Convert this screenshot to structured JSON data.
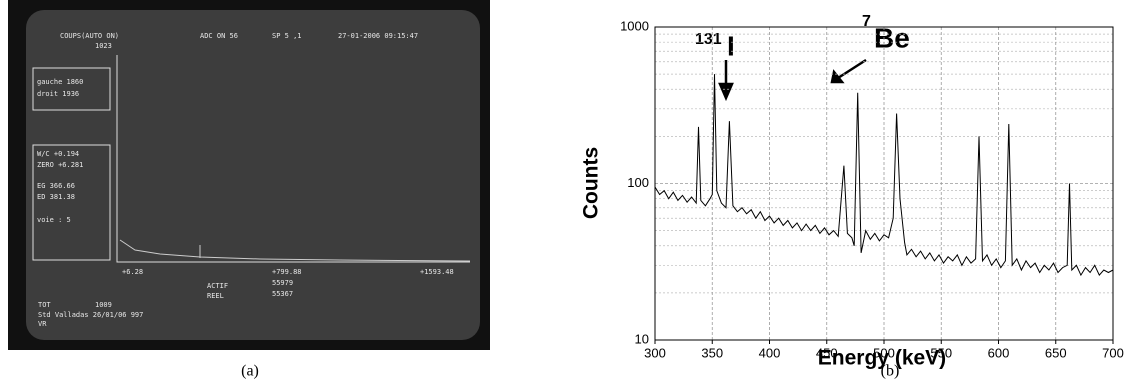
{
  "screen": {
    "lines": [
      "COUPS(AUTO ON)",
      "1023",
      "ADC ON 56",
      "SP 5 ,1",
      "27-01-2006  09:15:47",
      "gauche  1860",
      "droit  1936",
      "W/C  +0.194",
      "ZERO  +6.281",
      "EG  366.66",
      "ED  381.38",
      "voie :  5",
      "+6.28",
      "+799.88",
      "+1593.48",
      "ACTIF",
      "55979",
      "REEL",
      "55367",
      "TOT",
      "1009",
      "Std Valladas 26/01/06 997",
      "VR"
    ]
  },
  "captions": [
    "(a)",
    "(b)"
  ],
  "chart_data": {
    "type": "line",
    "xlabel": "Energy (keV)",
    "ylabel": "Counts",
    "log_y": true,
    "grid": true,
    "annotations": [
      {
        "mass": "131",
        "element": "I"
      },
      {
        "mass": "7",
        "element": "Be"
      }
    ],
    "xlim": [
      300,
      700
    ],
    "xticks": [
      300,
      350,
      400,
      450,
      500,
      550,
      600,
      650,
      700
    ],
    "ylim": [
      10,
      1000
    ],
    "yticks": [
      10,
      100,
      1000
    ],
    "x": [
      300,
      304,
      308,
      312,
      316,
      320,
      324,
      328,
      332,
      336,
      338,
      340,
      344,
      348,
      350,
      352,
      354,
      358,
      362,
      365,
      368,
      372,
      376,
      380,
      384,
      388,
      392,
      396,
      400,
      404,
      408,
      412,
      416,
      420,
      424,
      428,
      432,
      436,
      440,
      444,
      448,
      452,
      456,
      460,
      465,
      468,
      472,
      474,
      477,
      480,
      484,
      488,
      492,
      496,
      500,
      504,
      508,
      511,
      514,
      518,
      520,
      524,
      528,
      532,
      536,
      540,
      544,
      548,
      552,
      556,
      560,
      564,
      568,
      572,
      576,
      580,
      583,
      586,
      590,
      594,
      598,
      602,
      606,
      609,
      612,
      616,
      620,
      624,
      628,
      632,
      636,
      640,
      644,
      648,
      652,
      656,
      660,
      662,
      664,
      668,
      672,
      676,
      680,
      684,
      688,
      692,
      696,
      700
    ],
    "series": [
      {
        "name": "Counts",
        "color": "#000000",
        "values": [
          95,
          85,
          90,
          80,
          88,
          78,
          84,
          76,
          82,
          75,
          230,
          78,
          72,
          80,
          85,
          500,
          90,
          75,
          70,
          250,
          72,
          66,
          70,
          64,
          68,
          60,
          66,
          58,
          62,
          56,
          60,
          54,
          58,
          52,
          56,
          50,
          55,
          50,
          54,
          48,
          52,
          47,
          50,
          46,
          130,
          48,
          45,
          40,
          380,
          36,
          50,
          44,
          48,
          43,
          47,
          45,
          60,
          280,
          80,
          42,
          35,
          38,
          34,
          37,
          33,
          36,
          32,
          35,
          31,
          34,
          32,
          35,
          30,
          34,
          31,
          33,
          200,
          32,
          35,
          30,
          33,
          29,
          32,
          240,
          30,
          33,
          28,
          32,
          29,
          31,
          27,
          30,
          28,
          31,
          27,
          29,
          30,
          100,
          28,
          30,
          26,
          29,
          27,
          30,
          26,
          28,
          27,
          28
        ]
      }
    ]
  }
}
